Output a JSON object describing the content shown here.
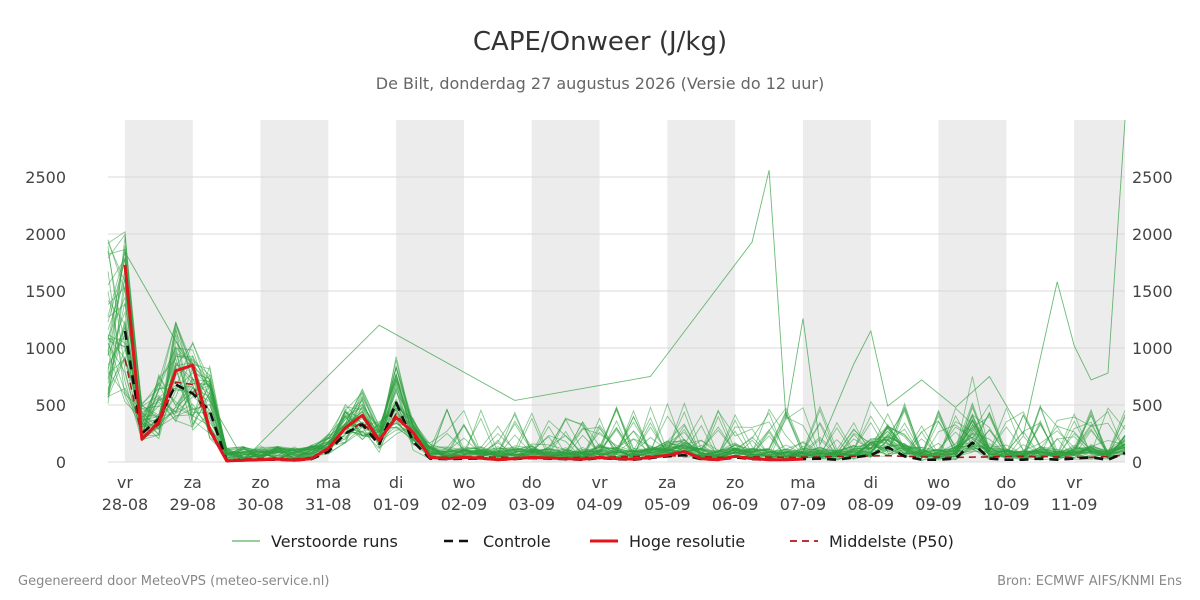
{
  "title": "CAPE/Onweer (J/kg)",
  "subtitle": "De Bilt, donderdag 27 augustus 2026 (Versie do 12 uur)",
  "footer_left": "Gegenereerd door MeteoVPS (meteo-service.nl)",
  "footer_right": "Bron: ECMWF AIFS/KNMI Ens",
  "colors": {
    "ensemble": "#2e9e3e",
    "control": "#111111",
    "hires": "#e0141c",
    "median": "#b01818",
    "shade": "#ececec",
    "grid": "#d8d8d8"
  },
  "chart_data": {
    "type": "line",
    "title": "CAPE/Onweer (J/kg)",
    "subtitle": "De Bilt, donderdag 27 augustus 2026 (Versie do 12 uur)",
    "x_unit": "days since 27-08-2026 12:00",
    "xlim": [
      0,
      15
    ],
    "ylim": [
      0,
      3000
    ],
    "yticks": [
      0,
      500,
      1000,
      1500,
      2000,
      2500
    ],
    "grid": true,
    "legend_position": "bottom",
    "shaded_columns_note": "alternate days shaded grey",
    "x_ticks": [
      {
        "day": "vr",
        "date": "28-08"
      },
      {
        "day": "za",
        "date": "29-08"
      },
      {
        "day": "zo",
        "date": "30-08"
      },
      {
        "day": "ma",
        "date": "31-08"
      },
      {
        "day": "di",
        "date": "01-09"
      },
      {
        "day": "wo",
        "date": "02-09"
      },
      {
        "day": "do",
        "date": "03-09"
      },
      {
        "day": "vr",
        "date": "04-09"
      },
      {
        "day": "za",
        "date": "05-09"
      },
      {
        "day": "zo",
        "date": "06-09"
      },
      {
        "day": "ma",
        "date": "07-09"
      },
      {
        "day": "di",
        "date": "08-09"
      },
      {
        "day": "wo",
        "date": "09-09"
      },
      {
        "day": "do",
        "date": "10-09"
      },
      {
        "day": "vr",
        "date": "11-09"
      }
    ],
    "series": [
      {
        "name": "Hoge resolutie",
        "style": "solid-thick",
        "x": [
          0.25,
          0.5,
          0.75,
          1.0,
          1.25,
          1.5,
          1.75,
          2.0,
          2.25,
          2.5,
          2.75,
          3.0,
          3.25,
          3.5,
          3.75,
          4.0,
          4.25,
          4.5,
          4.75,
          5.0,
          5.25,
          5.5,
          5.75,
          6.0,
          6.25,
          6.5,
          6.75,
          7.0,
          7.25,
          7.5,
          7.75,
          8.0,
          8.25,
          8.5,
          8.75,
          9.0,
          9.25,
          9.5,
          9.75,
          10.0,
          10.25
        ],
        "values": [
          1730,
          200,
          350,
          800,
          850,
          280,
          10,
          15,
          20,
          25,
          15,
          30,
          120,
          300,
          410,
          190,
          390,
          260,
          40,
          30,
          40,
          35,
          20,
          30,
          40,
          35,
          30,
          25,
          40,
          30,
          25,
          40,
          60,
          90,
          30,
          20,
          50,
          30,
          20,
          20,
          25
        ]
      },
      {
        "name": "Controle",
        "style": "dashed-thick",
        "x": [
          0.25,
          0.5,
          0.75,
          1.0,
          1.25,
          1.5,
          1.75,
          2.0,
          2.25,
          2.5,
          2.75,
          3.0,
          3.25,
          3.5,
          3.75,
          4.0,
          4.25,
          4.5,
          4.75,
          5.0,
          5.25,
          5.5,
          5.75,
          6.0,
          6.25,
          6.5,
          6.75,
          7.0,
          7.25,
          7.5,
          7.75,
          8.0,
          8.25,
          8.5,
          8.75,
          9.0,
          9.25,
          9.5,
          9.75,
          10.0,
          10.25,
          10.5,
          10.75,
          11.0,
          11.25,
          11.5,
          11.75,
          12.0,
          12.25,
          12.5,
          12.75,
          13.0,
          13.25,
          13.5,
          13.75,
          14.0,
          14.25,
          14.5,
          14.75,
          15.0
        ],
        "values": [
          1150,
          250,
          380,
          680,
          600,
          450,
          10,
          15,
          20,
          20,
          15,
          25,
          90,
          250,
          330,
          150,
          520,
          180,
          30,
          25,
          30,
          30,
          20,
          25,
          35,
          30,
          25,
          20,
          35,
          25,
          20,
          35,
          50,
          60,
          25,
          20,
          40,
          25,
          20,
          20,
          25,
          30,
          20,
          40,
          60,
          130,
          50,
          20,
          20,
          30,
          170,
          30,
          20,
          20,
          30,
          20,
          30,
          40,
          20,
          80
        ]
      },
      {
        "name": "Middelste (P50)",
        "style": "dashed-thin",
        "x": [
          0.25,
          0.5,
          0.75,
          1.0,
          1.25,
          1.5,
          1.75,
          2.0,
          2.25,
          2.5,
          2.75,
          3.0,
          3.25,
          3.5,
          3.75,
          4.0,
          4.25,
          4.5,
          4.75,
          5.0,
          5.5,
          6.0,
          6.5,
          7.0,
          7.5,
          8.0,
          8.5,
          9.0,
          9.5,
          10.0,
          10.5,
          11.0,
          11.5,
          12.0,
          12.5,
          13.0,
          13.5,
          14.0,
          14.5,
          15.0
        ],
        "values": [
          900,
          220,
          330,
          700,
          680,
          300,
          20,
          25,
          30,
          35,
          25,
          40,
          110,
          250,
          350,
          180,
          420,
          230,
          50,
          40,
          45,
          40,
          35,
          40,
          45,
          50,
          55,
          40,
          45,
          40,
          45,
          50,
          55,
          45,
          40,
          45,
          50,
          45,
          40,
          60
        ]
      },
      {
        "name": "Verstoorde runs",
        "style": "thin",
        "note": "50 ensemble members drawn semi-transparent; representative outliers listed",
        "x": [
          0.25,
          2.0,
          4.0,
          6.0,
          8.0,
          9.5,
          9.75,
          10.0,
          10.25,
          10.5,
          11.0,
          11.25,
          11.5,
          12.0,
          12.5,
          13.0,
          13.5,
          14.0,
          14.25,
          14.5,
          14.75,
          15.0
        ],
        "values": [
          1840,
          20,
          1200,
          540,
          750,
          1930,
          2560,
          380,
          1260,
          150,
          860,
          1150,
          490,
          720,
          480,
          750,
          240,
          1580,
          1020,
          720,
          780,
          3000
        ]
      }
    ]
  },
  "legend": [
    {
      "label": "Verstoorde runs",
      "key": "ensemble"
    },
    {
      "label": "Controle",
      "key": "control"
    },
    {
      "label": "Hoge resolutie",
      "key": "hires"
    },
    {
      "label": "Middelste (P50)",
      "key": "median"
    }
  ]
}
